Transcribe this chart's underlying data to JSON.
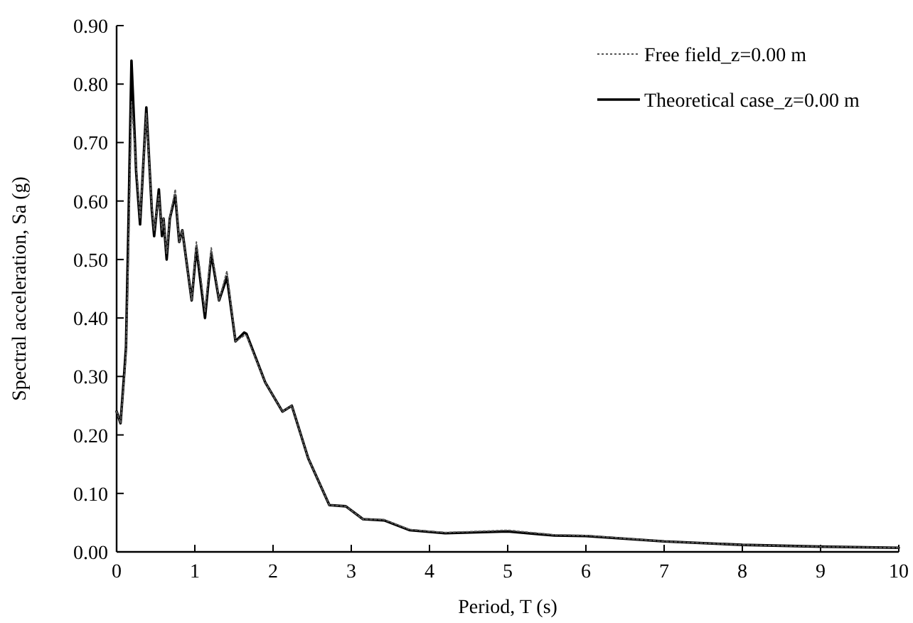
{
  "chart_data": {
    "type": "line",
    "xlabel": "Period, T (s)",
    "ylabel": "Spectral acceleration, Sa (g)",
    "xlim": [
      0,
      10
    ],
    "xticks": [
      0,
      1,
      2,
      3,
      4,
      5,
      6,
      7,
      8,
      9,
      10
    ],
    "ylim": [
      0,
      0.9
    ],
    "yticks": [
      {
        "value": 0,
        "label": "0.00"
      },
      {
        "value": 0.1,
        "label": "0.10"
      },
      {
        "value": 0.2,
        "label": "0.20"
      },
      {
        "value": 0.3,
        "label": "0.30"
      },
      {
        "value": 0.4,
        "label": "0.40"
      },
      {
        "value": 0.5,
        "label": "0.50"
      },
      {
        "value": 0.6,
        "label": "0.60"
      },
      {
        "value": 0.7,
        "label": "0.70"
      },
      {
        "value": 0.8,
        "label": "0.80"
      },
      {
        "value": 0.9,
        "label": "0.90"
      }
    ],
    "grid": false,
    "legend": "top right",
    "marker": "none",
    "series": [
      {
        "name": "Free field_z=0.00 m",
        "color": "#555555",
        "line_style": "dotted",
        "x": [
          0,
          0.05,
          0.1,
          0.12,
          0.15,
          0.19,
          0.25,
          0.3,
          0.38,
          0.45,
          0.48,
          0.54,
          0.58,
          0.6,
          0.64,
          0.68,
          0.75,
          0.8,
          0.84,
          0.96,
          1.02,
          1.13,
          1.21,
          1.31,
          1.41,
          1.52,
          1.63,
          1.66,
          1.9,
          2.12,
          2.24,
          2.45,
          2.72,
          2.93,
          3.15,
          3.42,
          3.75,
          4.2,
          5,
          5.6,
          6,
          7,
          8,
          9,
          10
        ],
        "values": [
          0.24,
          0.22,
          0.3,
          0.34,
          0.5,
          0.77,
          0.66,
          0.57,
          0.75,
          0.59,
          0.55,
          0.61,
          0.55,
          0.57,
          0.51,
          0.57,
          0.62,
          0.53,
          0.55,
          0.43,
          0.53,
          0.41,
          0.52,
          0.43,
          0.48,
          0.36,
          0.37,
          0.37,
          0.29,
          0.24,
          0.25,
          0.16,
          0.08,
          0.078,
          0.056,
          0.055,
          0.038,
          0.033,
          0.037,
          0.029,
          0.028,
          0.018,
          0.012,
          0.009,
          0.007
        ]
      },
      {
        "name": "Theoretical case_z=0.00 m",
        "color": "#000000",
        "line_style": "solid",
        "x": [
          0,
          0.05,
          0.1,
          0.12,
          0.15,
          0.19,
          0.25,
          0.3,
          0.38,
          0.45,
          0.48,
          0.54,
          0.58,
          0.6,
          0.64,
          0.68,
          0.75,
          0.8,
          0.84,
          0.96,
          1.02,
          1.13,
          1.21,
          1.31,
          1.41,
          1.52,
          1.63,
          1.66,
          1.9,
          2.12,
          2.24,
          2.45,
          2.72,
          2.93,
          3.15,
          3.42,
          3.75,
          4.2,
          5,
          5.6,
          6,
          7,
          8,
          9,
          10
        ],
        "values": [
          0.24,
          0.22,
          0.31,
          0.35,
          0.55,
          0.84,
          0.65,
          0.56,
          0.76,
          0.585,
          0.54,
          0.62,
          0.54,
          0.57,
          0.5,
          0.57,
          0.61,
          0.53,
          0.55,
          0.43,
          0.52,
          0.4,
          0.51,
          0.43,
          0.47,
          0.36,
          0.375,
          0.373,
          0.29,
          0.24,
          0.25,
          0.16,
          0.08,
          0.078,
          0.056,
          0.054,
          0.037,
          0.032,
          0.035,
          0.028,
          0.027,
          0.018,
          0.012,
          0.009,
          0.007
        ]
      }
    ]
  }
}
